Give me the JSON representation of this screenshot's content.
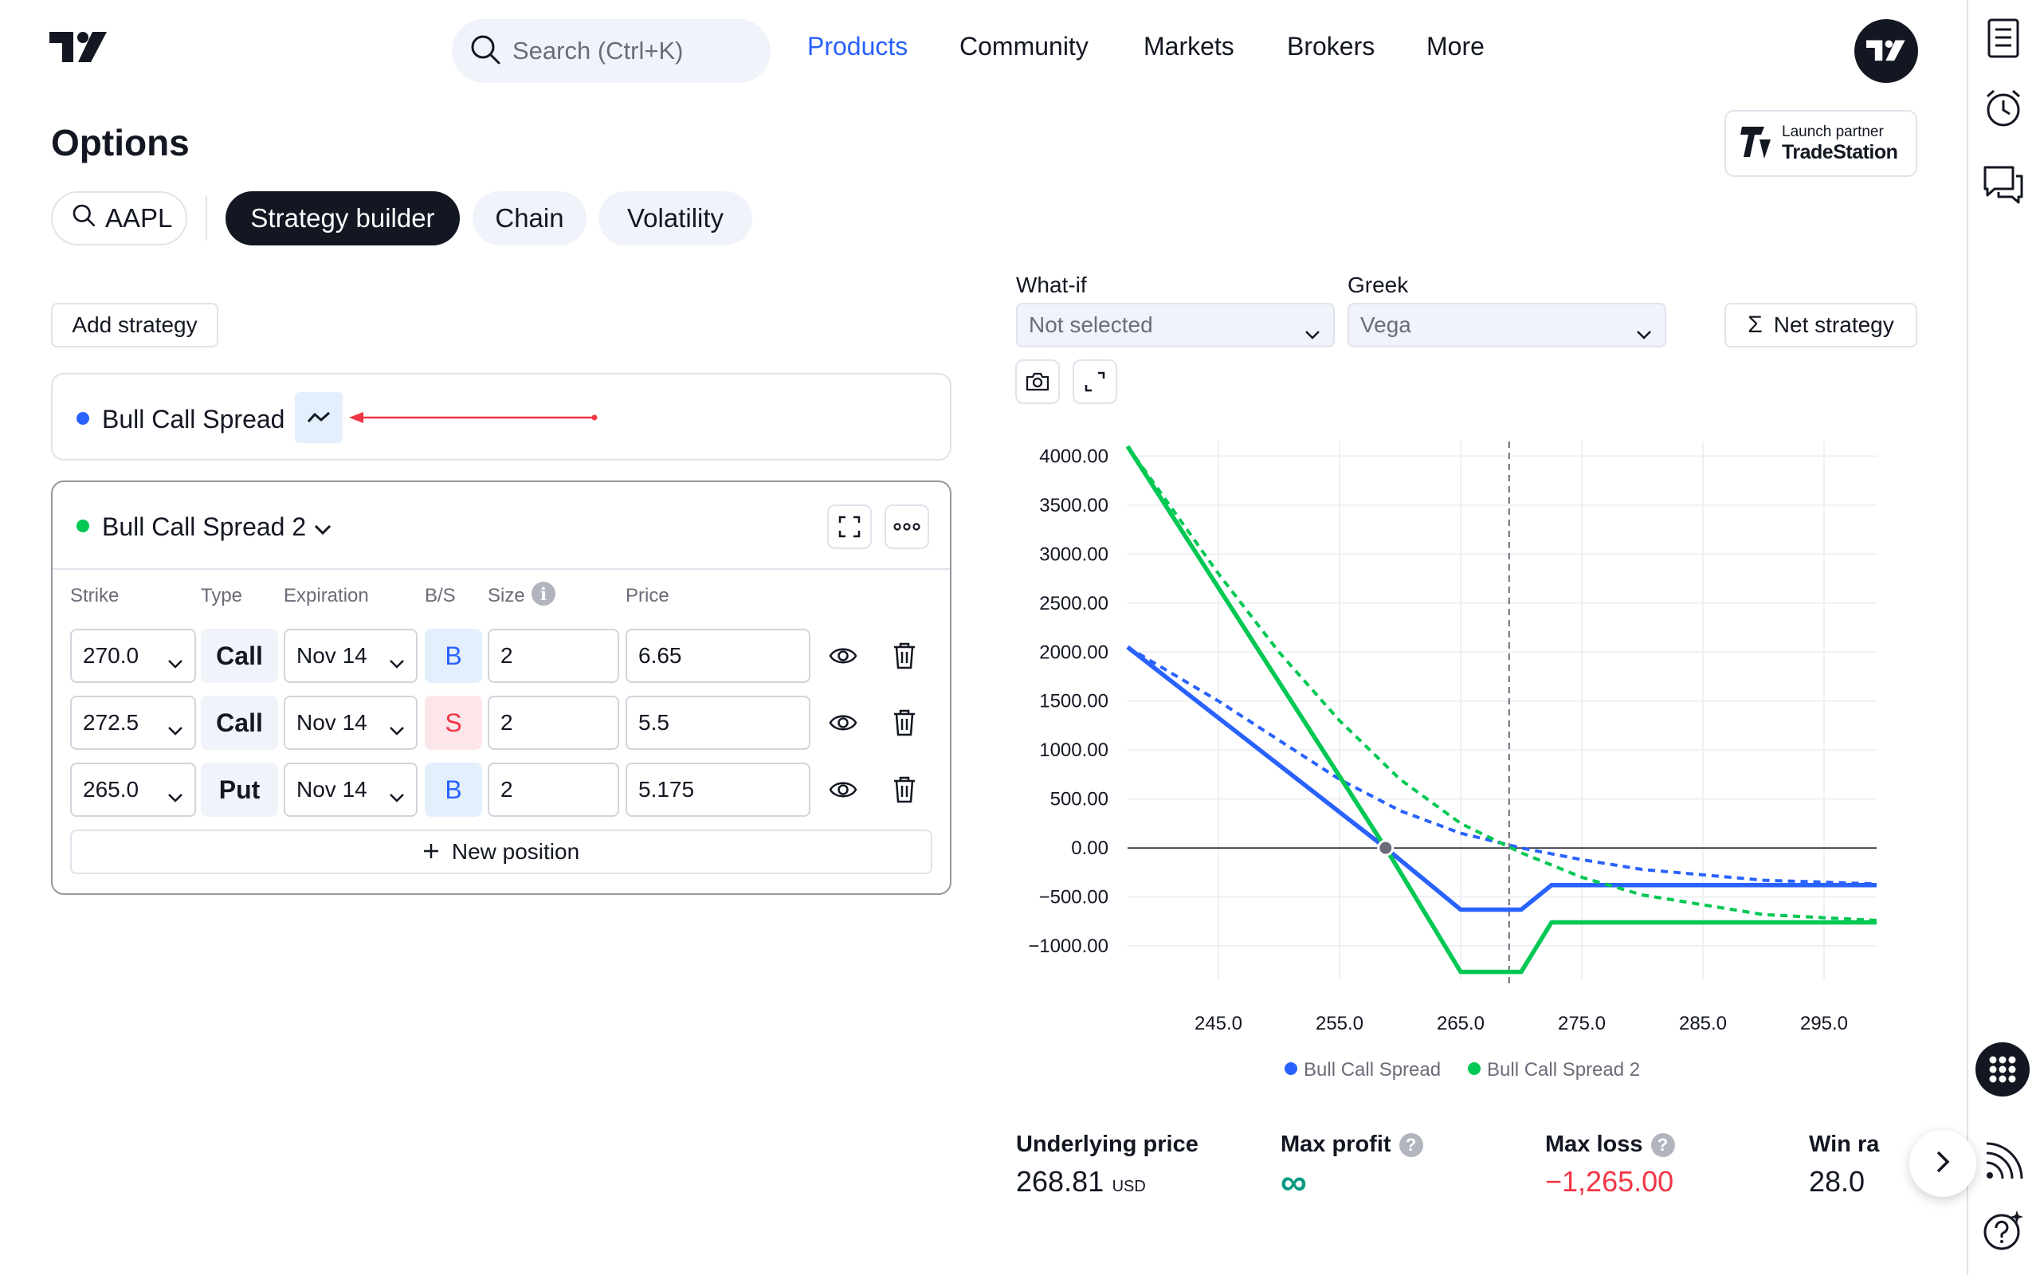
{
  "header": {
    "search_placeholder": "Search (Ctrl+K)",
    "nav": [
      "Products",
      "Community",
      "Markets",
      "Brokers",
      "More"
    ],
    "active_nav": "Products"
  },
  "page": {
    "title": "Options",
    "partner_line1": "Launch partner",
    "partner_line2": "TradeStation"
  },
  "tabs": {
    "symbol": "AAPL",
    "items": [
      "Strategy builder",
      "Chain",
      "Volatility"
    ],
    "active": "Strategy builder"
  },
  "left_panel": {
    "add_strategy_label": "Add strategy",
    "strategy1": {
      "name": "Bull Call Spread",
      "color": "#2962ff"
    },
    "strategy2": {
      "name": "Bull Call Spread 2",
      "color": "#00c853",
      "columns": [
        "Strike",
        "Type",
        "Expiration",
        "B/S",
        "Size",
        "Price"
      ],
      "legs": [
        {
          "strike": "270.0",
          "type": "Call",
          "expiration": "Nov 14",
          "bs": "B",
          "size": "2",
          "price": "6.65"
        },
        {
          "strike": "272.5",
          "type": "Call",
          "expiration": "Nov 14",
          "bs": "S",
          "size": "2",
          "price": "5.5"
        },
        {
          "strike": "265.0",
          "type": "Put",
          "expiration": "Nov 14",
          "bs": "B",
          "size": "2",
          "price": "5.175"
        }
      ],
      "new_position_label": "New position"
    }
  },
  "right_panel": {
    "whatif_label": "What-if",
    "whatif_value": "Not selected",
    "greek_label": "Greek",
    "greek_value": "Vega",
    "net_strategy_label": "Net strategy"
  },
  "chart_data": {
    "type": "line",
    "xlim": [
      237.5,
      302.5
    ],
    "ylim": [
      -1350,
      4150
    ],
    "x_ticks": [
      245.0,
      255.0,
      265.0,
      275.0,
      285.0,
      295.0
    ],
    "x_tick_labels": [
      "245.0",
      "255.0",
      "265.0",
      "275.0",
      "285.0",
      "295.0"
    ],
    "y_ticks": [
      4000,
      3500,
      3000,
      2500,
      2000,
      1500,
      1000,
      500,
      0,
      -500,
      -1000
    ],
    "y_tick_labels": [
      "4000.00",
      "3500.00",
      "3000.00",
      "2500.00",
      "2000.00",
      "1500.00",
      "1000.00",
      "500.00",
      "0.00",
      "−500.00",
      "−1000.00"
    ],
    "vline_x": 269,
    "breakeven_x": 258.8,
    "series": [
      {
        "name": "Bull Call Spread",
        "color": "#2962ff",
        "style": "solid",
        "x": [
          237.5,
          258.8,
          265.0,
          270.0,
          272.5,
          302.5
        ],
        "y": [
          2050,
          0,
          -630,
          -630,
          -380,
          -380
        ]
      },
      {
        "name": "Bull Call Spread",
        "color": "#2962ff",
        "style": "dashed",
        "x": [
          237.5,
          245,
          250,
          255,
          260,
          265,
          270,
          275,
          280,
          290,
          302.5
        ],
        "y": [
          2050,
          1500,
          1100,
          700,
          380,
          150,
          0,
          -120,
          -220,
          -330,
          -380
        ]
      },
      {
        "name": "Bull Call Spread 2",
        "color": "#00c853",
        "style": "solid",
        "x": [
          237.5,
          258.8,
          265.0,
          270.0,
          272.5,
          302.5
        ],
        "y": [
          4100,
          0,
          -1265,
          -1265,
          -760,
          -760
        ]
      },
      {
        "name": "Bull Call Spread 2",
        "color": "#00c853",
        "style": "dashed",
        "x": [
          237.5,
          245,
          250,
          255,
          260,
          265,
          270,
          275,
          280,
          290,
          302.5
        ],
        "y": [
          4100,
          2800,
          2000,
          1300,
          700,
          250,
          -50,
          -300,
          -480,
          -680,
          -760
        ]
      }
    ],
    "legend": [
      "Bull Call Spread",
      "Bull Call Spread 2"
    ]
  },
  "stats": {
    "underlying_label": "Underlying price",
    "underlying_value": "268.81",
    "underlying_unit": "USD",
    "max_profit_label": "Max profit",
    "max_profit_value": "∞",
    "max_loss_label": "Max loss",
    "max_loss_value": "−1,265.00",
    "win_label": "Win ra",
    "win_value": "28.0"
  }
}
